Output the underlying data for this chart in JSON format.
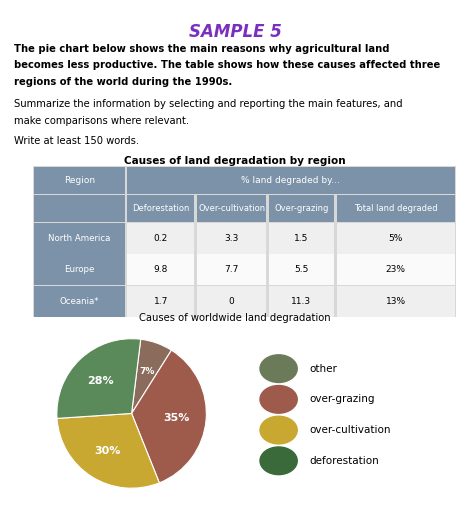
{
  "title": "SAMPLE 5",
  "title_color": "#7B2FBE",
  "bold_line1": "The pie chart below shows the main reasons why agricultural land",
  "bold_line2": "becomes less productive. The table shows how these causes affected three",
  "bold_line3": "regions of the world during the 1990s.",
  "normal_line1": "Summarize the information by selecting and reporting the main features, and",
  "normal_line2": "make comparisons where relevant.",
  "extra_text": "Write at least 150 words.",
  "table_title": "Causes of land degradation by region",
  "table_header_region": "Region",
  "table_header_pct": "% land degraded by...",
  "table_subheaders": [
    "Deforestation",
    "Over-cultivation",
    "Over-grazing",
    "Total land degraded"
  ],
  "table_rows": [
    [
      "North America",
      "0.2",
      "3.3",
      "1.5",
      "5%"
    ],
    [
      "Europe",
      "9.8",
      "7.7",
      "5.5",
      "23%"
    ],
    [
      "Oceania*",
      "1.7",
      "0",
      "11.3",
      "13%"
    ]
  ],
  "table_header_bg": "#7B92A8",
  "table_row_bg_light": "#EFEFEF",
  "table_row_bg_white": "#FAFAFA",
  "pie_title": "Causes of worldwide land degradation",
  "pie_values": [
    7,
    35,
    30,
    28
  ],
  "pie_labels": [
    "7%",
    "35%",
    "30%",
    "28%"
  ],
  "pie_colors": [
    "#8B6B5C",
    "#9E5A4A",
    "#C8A830",
    "#5A8A5A"
  ],
  "pie_startangle": 83,
  "pie_legend_labels": [
    "other",
    "over-grazing",
    "over-cultivation",
    "deforestation"
  ],
  "pie_legend_colors": [
    "#6B7B5A",
    "#9E5A4A",
    "#C8A830",
    "#3A6A3A"
  ],
  "background_color": "#FFFFFF",
  "table_outer_bg": "#D8D8D8"
}
